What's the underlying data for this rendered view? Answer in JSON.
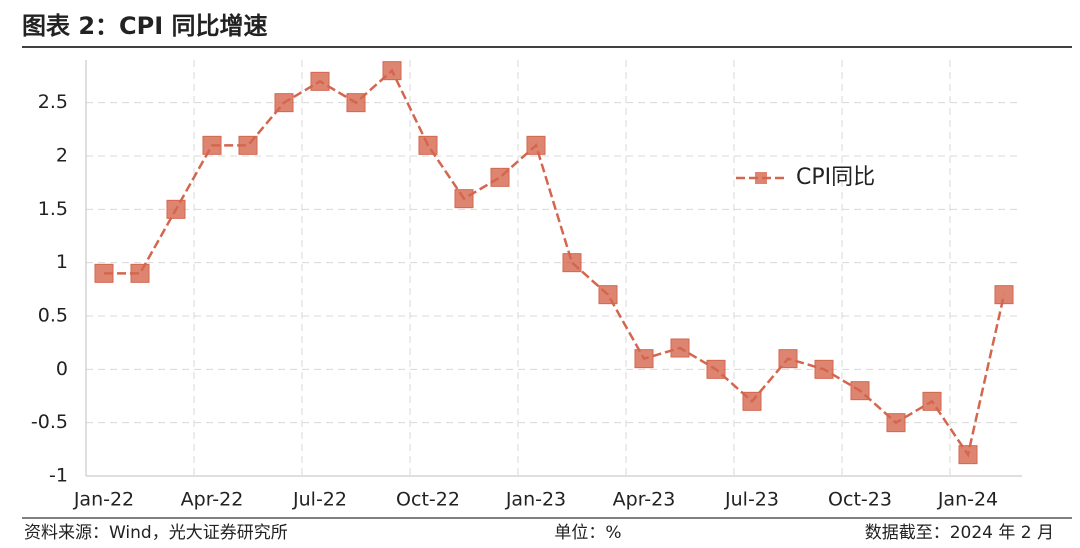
{
  "chart_data": {
    "type": "line",
    "title": "图表 2：CPI 同比增速",
    "source": "资料来源：Wind，光大证券研究所",
    "unit": "单位：%",
    "note": "数据截至：2024 年 2 月",
    "categories": [
      "Jan-22",
      null,
      null,
      "Apr-22",
      null,
      null,
      "Jul-22",
      null,
      null,
      "Oct-22",
      null,
      null,
      "Jan-23",
      null,
      null,
      "Apr-23",
      null,
      null,
      "Jul-23",
      null,
      null,
      "Oct-23",
      null,
      null,
      "Jan-24",
      null
    ],
    "series": [
      {
        "name": "CPI同比",
        "color": "#d4664e",
        "values": [
          0.9,
          0.9,
          1.5,
          2.1,
          2.1,
          2.5,
          2.7,
          2.5,
          2.8,
          2.1,
          1.6,
          1.8,
          2.1,
          1.0,
          0.7,
          0.1,
          0.2,
          0.0,
          -0.3,
          0.1,
          0.0,
          -0.2,
          -0.5,
          -0.3,
          -0.8,
          0.7
        ]
      }
    ],
    "ylim": [
      -1,
      2.9
    ],
    "yticks": [
      -1,
      -0.5,
      0,
      0.5,
      1,
      1.5,
      2,
      2.5
    ],
    "grid": true,
    "legend": "center-right"
  }
}
